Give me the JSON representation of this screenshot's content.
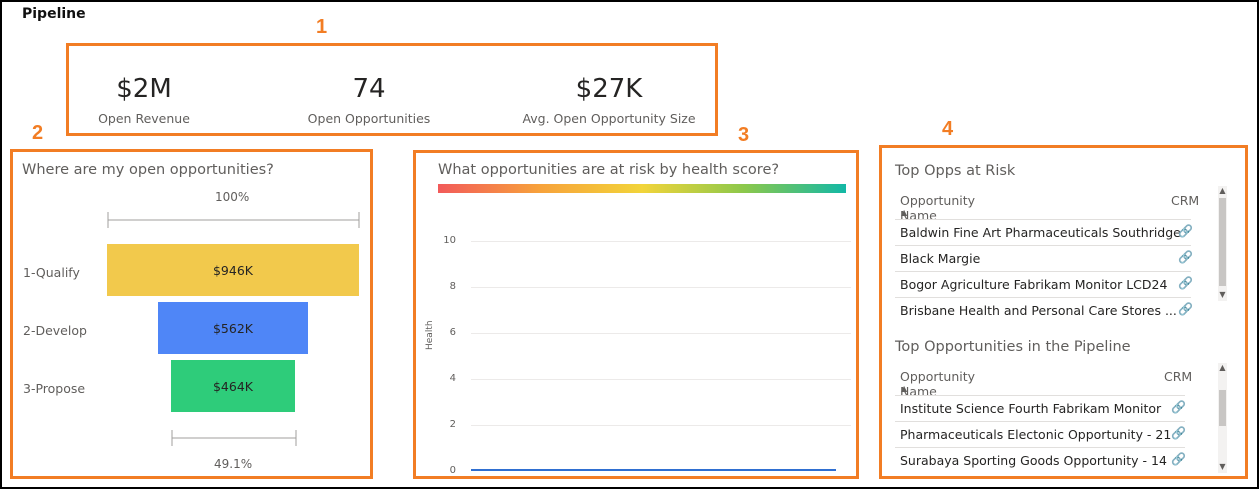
{
  "page": {
    "title": "Pipeline"
  },
  "callouts": [
    "1",
    "2",
    "3",
    "4"
  ],
  "kpis": [
    {
      "value": "$2M",
      "label": "Open Revenue"
    },
    {
      "value": "74",
      "label": "Open Opportunities"
    },
    {
      "value": "$27K",
      "label": "Avg.  Open Opportunity Size"
    }
  ],
  "funnel": {
    "title": "Where are my open opportunities?",
    "top_percent": "100%",
    "bottom_percent": "49.1%",
    "stages": [
      {
        "label": "1-Qualify",
        "value_label": "$946K",
        "value": 946,
        "color": "#f2c94c"
      },
      {
        "label": "2-Develop",
        "value_label": "$562K",
        "value": 562,
        "color": "#4f86f7"
      },
      {
        "label": "3-Propose",
        "value_label": "$464K",
        "value": 464,
        "color": "#2ecc7a"
      }
    ]
  },
  "health_chart": {
    "title": "What opportunities are at risk by health score?",
    "ylabel": "Health",
    "y_ticks": [
      "10",
      "8",
      "6",
      "4",
      "2",
      "0"
    ],
    "ylim": [
      0,
      10
    ],
    "gradient_colors": [
      "#f25a5a",
      "#f7a23b",
      "#f2d43a",
      "#8cc84b",
      "#12b8a6"
    ],
    "line_color": "#2f6fd1"
  },
  "top_risk": {
    "title": "Top Opps at Risk",
    "col_name": "Opportunity Name",
    "col_crm": "CRM",
    "rows": [
      "Baldwin Fine Art Pharmaceuticals Southridge",
      "Black Margie",
      "Bogor Agriculture Fabrikam Monitor LCD24",
      "Brisbane Health and Personal Care Stores ..."
    ],
    "link_icon": "link-icon"
  },
  "top_pipeline": {
    "title": "Top Opportunities in the Pipeline",
    "col_name": "Opportunity Name",
    "col_crm": "CRM",
    "rows": [
      "Institute Science Fourth Fabrikam Monitor",
      "Pharmaceuticals Electonic Opportunity - 21",
      "Surabaya Sporting Goods Opportunity - 14"
    ],
    "link_icon": "link-icon"
  }
}
